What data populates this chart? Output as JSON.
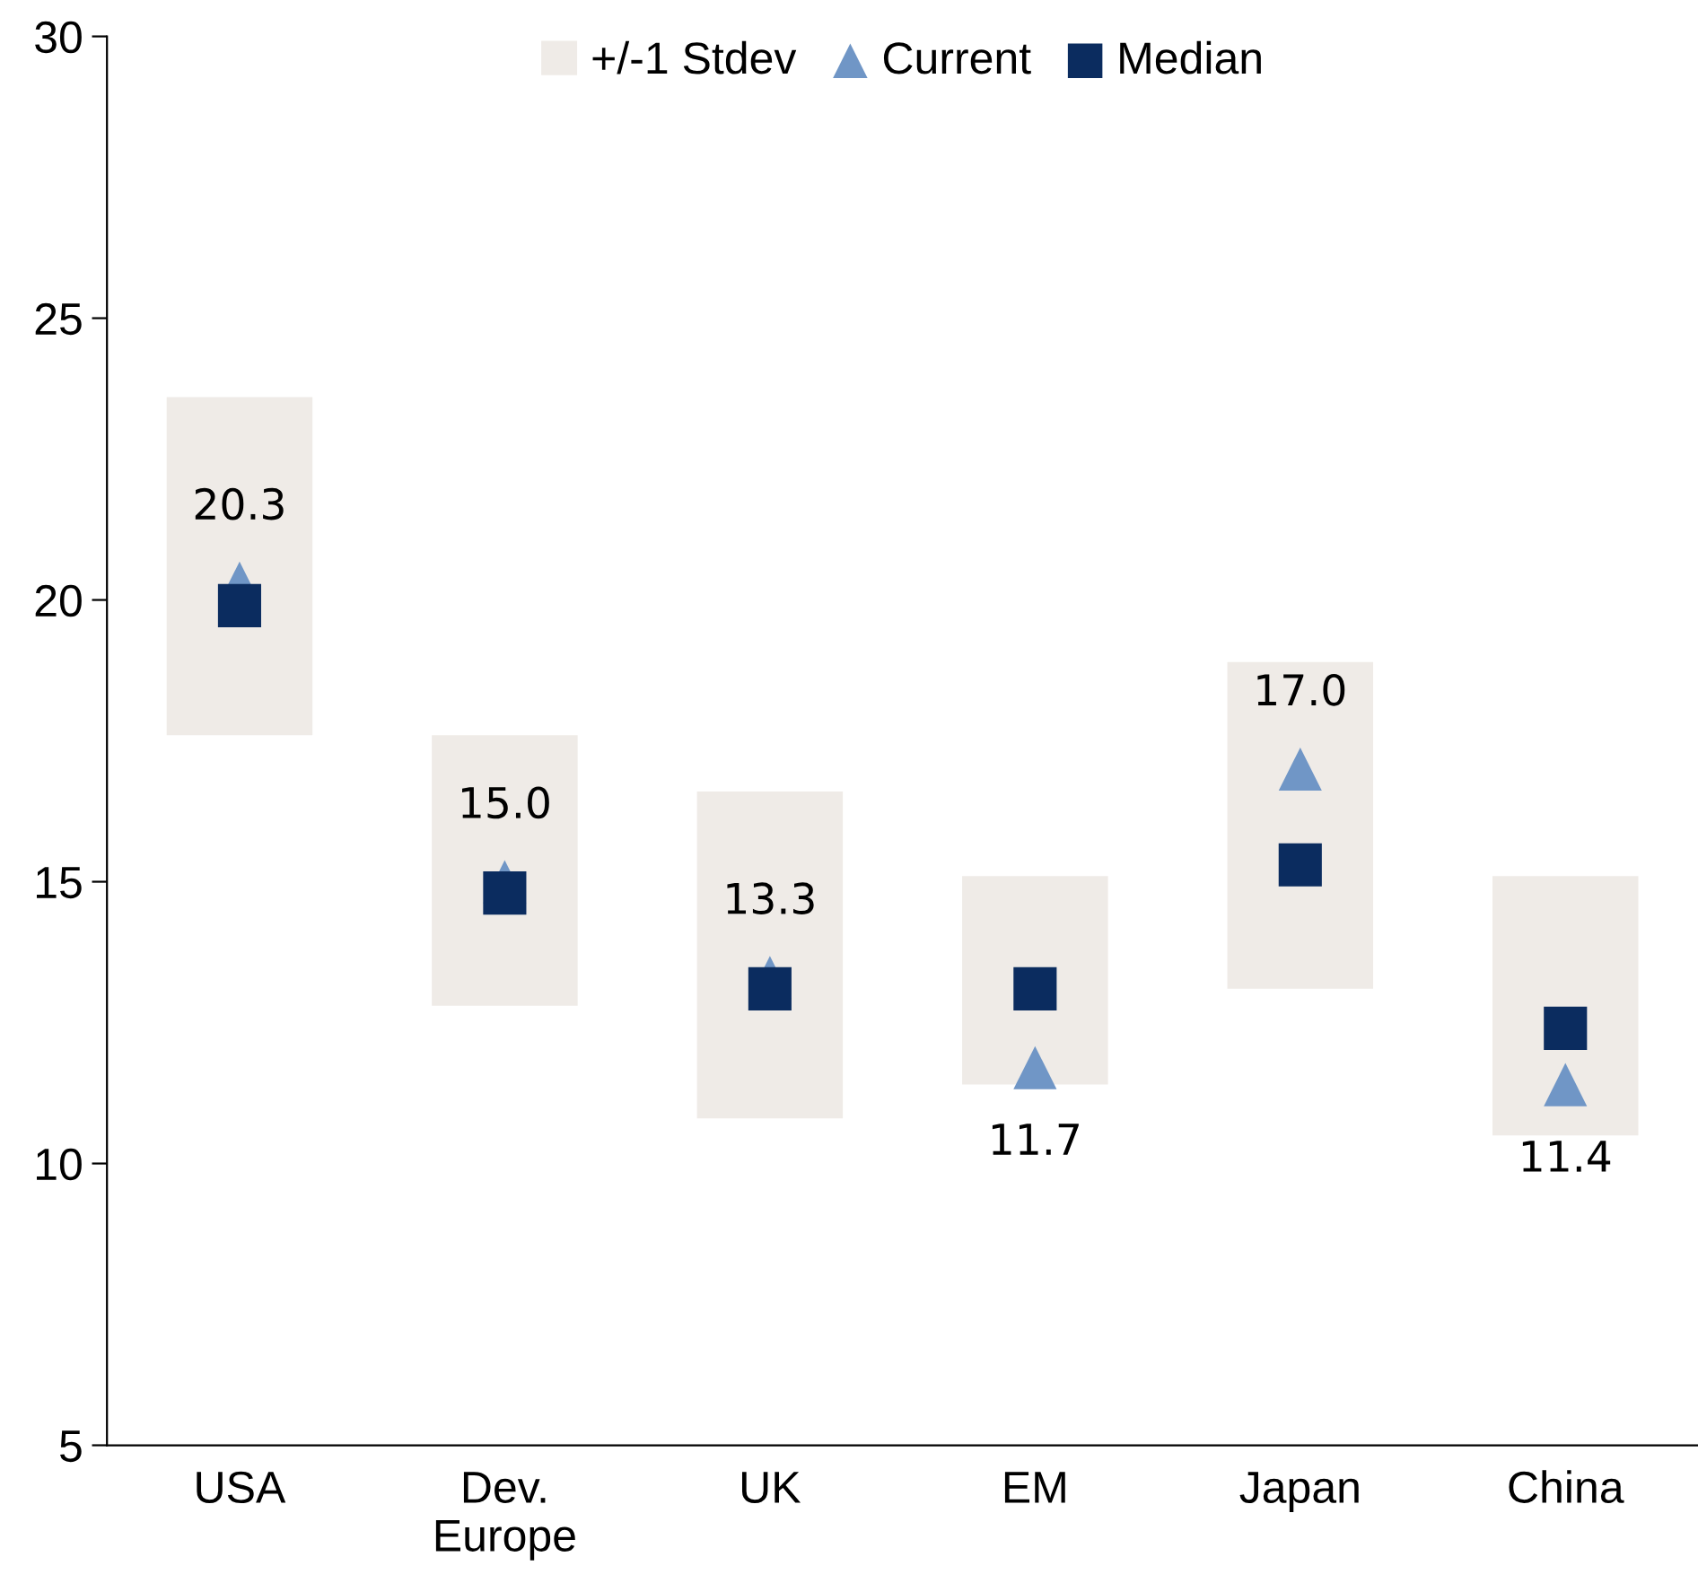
{
  "chart_data": {
    "type": "bar",
    "categories": [
      "USA",
      "Dev.\nEurope",
      "UK",
      "EM",
      "Japan",
      "China"
    ],
    "series": [
      {
        "name": "+/-1 Stdev",
        "color": "#efebe7",
        "base": [
          17.6,
          12.8,
          10.8,
          11.4,
          13.1,
          10.5
        ],
        "values": [
          6.0,
          4.8,
          5.8,
          3.7,
          5.8,
          4.6
        ]
      },
      {
        "name": "Current",
        "type": "scatter",
        "marker": "triangle",
        "color": "#7096c6",
        "values": [
          20.3,
          15.0,
          13.3,
          11.7,
          17.0,
          11.4
        ],
        "value_labels": [
          "20.3",
          "15.0",
          "13.3",
          "11.7",
          "17.0",
          "11.4"
        ]
      },
      {
        "name": "Median",
        "type": "scatter",
        "marker": "square",
        "color": "#0b2c5f",
        "values": [
          19.9,
          14.8,
          13.1,
          13.1,
          15.3,
          12.4
        ]
      }
    ],
    "ylim": [
      5,
      30
    ],
    "yticks": [
      5,
      10,
      15,
      20,
      25,
      30
    ],
    "grid": false,
    "legend": "top"
  }
}
